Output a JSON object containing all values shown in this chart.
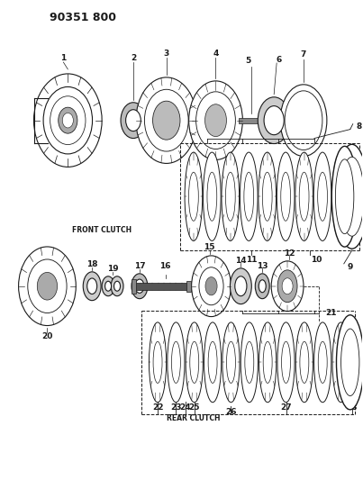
{
  "title": "90351 800",
  "background_color": "#ffffff",
  "line_color": "#1a1a1a",
  "fig_width": 4.03,
  "fig_height": 5.33,
  "dpi": 100,
  "front_clutch_label": "FRONT CLUTCH",
  "rear_clutch_label": "REAR CLUTCH"
}
